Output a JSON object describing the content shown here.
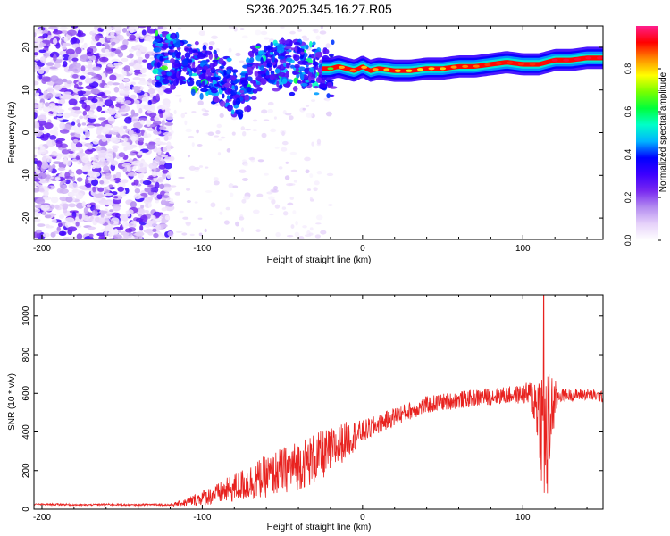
{
  "title": "S236.2025.345.16.27.R05",
  "chart_data": [
    {
      "type": "heatmap",
      "xlabel": "Height of straight line (km)",
      "ylabel": "Frequency (Hz)",
      "xlim": [
        -205,
        150
      ],
      "ylim": [
        -25,
        25
      ],
      "xticks": [
        -200,
        -100,
        0,
        100
      ],
      "yticks": [
        -20,
        -10,
        0,
        10,
        20
      ],
      "ridge": {
        "x": [
          -125,
          -118,
          -110,
          -100,
          -92,
          -85,
          -80,
          -76,
          -73,
          -70,
          -65,
          -60,
          -55,
          -50,
          -45,
          -40,
          -35,
          -30,
          -25,
          -20,
          -15,
          -10,
          -5,
          0,
          5,
          10,
          20,
          30,
          40,
          50,
          60,
          70,
          80,
          90,
          100,
          110,
          120,
          130,
          140,
          150
        ],
        "freq": [
          17.5,
          17.0,
          15.5,
          14.5,
          13.0,
          11.5,
          10.0,
          8.0,
          10.5,
          13.5,
          15.5,
          16.0,
          15.5,
          16.5,
          16.0,
          15.5,
          16.0,
          15.5,
          15.0,
          15.0,
          15.5,
          15.0,
          14.5,
          15.5,
          14.5,
          15.0,
          14.5,
          14.5,
          15.0,
          15.0,
          15.5,
          15.5,
          16.0,
          16.5,
          16.0,
          16.0,
          17.0,
          17.0,
          17.5,
          17.5
        ],
        "amplitude": [
          0.35,
          0.35,
          0.35,
          0.3,
          0.3,
          0.3,
          0.3,
          0.25,
          0.3,
          0.35,
          0.35,
          0.35,
          0.3,
          0.35,
          0.35,
          0.4,
          0.4,
          0.45,
          0.5,
          0.65,
          0.8,
          0.85,
          0.85,
          0.8,
          0.85,
          0.8,
          0.8,
          0.75,
          0.8,
          0.8,
          0.85,
          0.85,
          0.9,
          0.9,
          0.9,
          0.9,
          0.95,
          0.95,
          0.95,
          0.95
        ]
      },
      "colorbar": {
        "label": "Normalized spectral amplitude",
        "range": [
          0,
          1
        ],
        "ticks": [
          0.0,
          0.2,
          0.4,
          0.6,
          0.8
        ],
        "tick_labels": [
          "0.0",
          "0.2",
          "0.4",
          "0.6",
          "0.8"
        ],
        "stops": [
          "#ffffff",
          "#e6d2fa",
          "#b48cf0",
          "#7828f0",
          "#3c00ff",
          "#0000ff",
          "#00b4ff",
          "#00ffc8",
          "#00ff3c",
          "#78ff00",
          "#ffff00",
          "#ff8c00",
          "#ff0000",
          "#ff1e8c"
        ]
      }
    },
    {
      "type": "line",
      "xlabel": "Height of straight line (km)",
      "ylabel": "SNR (10 * v/v)",
      "xlim": [
        -205,
        150
      ],
      "ylim": [
        0,
        1110
      ],
      "xticks": [
        -200,
        -100,
        0,
        100
      ],
      "yticks": [
        0,
        200,
        400,
        600,
        800,
        1000
      ],
      "series": [
        {
          "name": "SNR",
          "color": "#e8221f",
          "x": [
            -205,
            -190,
            -175,
            -160,
            -145,
            -130,
            -120,
            -110,
            -100,
            -90,
            -80,
            -70,
            -60,
            -50,
            -40,
            -30,
            -20,
            -15,
            -10,
            -5,
            0,
            5,
            10,
            15,
            20,
            30,
            40,
            50,
            60,
            70,
            80,
            90,
            100,
            105,
            110,
            112,
            115,
            118,
            122,
            130,
            140,
            150
          ],
          "y": [
            25,
            25,
            22,
            25,
            22,
            25,
            22,
            35,
            60,
            80,
            110,
            140,
            170,
            200,
            230,
            260,
            300,
            330,
            360,
            380,
            400,
            420,
            440,
            460,
            480,
            510,
            540,
            555,
            565,
            575,
            585,
            590,
            595,
            590,
            520,
            420,
            330,
            520,
            590,
            590,
            595,
            580
          ],
          "noise": [
            4,
            5,
            4,
            5,
            4,
            5,
            6,
            20,
            40,
            55,
            75,
            95,
            110,
            120,
            130,
            135,
            120,
            110,
            95,
            80,
            60,
            55,
            50,
            50,
            50,
            45,
            45,
            45,
            45,
            45,
            45,
            45,
            50,
            80,
            220,
            350,
            400,
            200,
            40,
            30,
            30,
            30
          ],
          "peak": {
            "x": 113,
            "y": 1110
          }
        }
      ]
    }
  ]
}
